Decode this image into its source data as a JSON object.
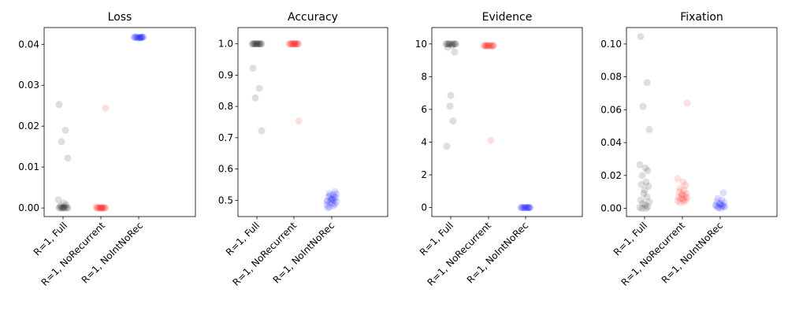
{
  "chart_data": [
    {
      "type": "scatter",
      "title": "Loss",
      "categories": [
        "R=1, Full",
        "R=1, NoRecurrent",
        "R=1, NoIntNoRec"
      ],
      "ylim": [
        -0.0021,
        0.0441
      ],
      "yticks": [
        0.0,
        0.01,
        0.02,
        0.03,
        0.04
      ],
      "ytick_labels": [
        "0.00",
        "0.01",
        "0.02",
        "0.03",
        "0.04"
      ],
      "series": [
        {
          "color": "#000000",
          "values": [
            0.0253,
            0.019,
            0.0162,
            0.0122,
            0.002,
            0.0012,
            0.0008,
            0.0005,
            0.0003,
            0.0002,
            0.0001,
            0.0001,
            0.0,
            0.0,
            0.0,
            0.0,
            0.0,
            0.0
          ]
        },
        {
          "color": "#ff0000",
          "values": [
            0.0244,
            0.0003,
            0.0002,
            0.0001,
            0.0001,
            0.0,
            0.0,
            0.0,
            0.0,
            0.0,
            0.0,
            0.0,
            0.0,
            0.0,
            0.0
          ]
        },
        {
          "color": "#0000ff",
          "values": [
            0.0418,
            0.0418,
            0.0417,
            0.0417,
            0.0417,
            0.0416,
            0.0416,
            0.0416,
            0.0417,
            0.0418,
            0.0417,
            0.0416,
            0.0417,
            0.0418,
            0.0417
          ]
        }
      ]
    },
    {
      "type": "scatter",
      "title": "Accuracy",
      "categories": [
        "R=1, Full",
        "R=1, NoRecurrent",
        "R=1, NoIntNoRec"
      ],
      "ylim": [
        0.448,
        1.052
      ],
      "yticks": [
        0.5,
        0.6,
        0.7,
        0.8,
        0.9,
        1.0
      ],
      "ytick_labels": [
        "0.5",
        "0.6",
        "0.7",
        "0.8",
        "0.9",
        "1.0"
      ],
      "series": [
        {
          "color": "#000000",
          "values": [
            0.922,
            0.858,
            0.827,
            0.722,
            1.0,
            1.0,
            1.0,
            1.0,
            1.0,
            1.0,
            1.0,
            1.0,
            1.0,
            1.0,
            1.0,
            1.0,
            1.0
          ]
        },
        {
          "color": "#ff0000",
          "values": [
            0.753,
            1.0,
            1.0,
            1.0,
            1.0,
            1.0,
            1.0,
            1.0,
            1.0,
            1.0,
            1.0,
            1.0,
            1.0,
            1.0,
            1.0
          ]
        },
        {
          "color": "#0000ff",
          "values": [
            0.528,
            0.522,
            0.518,
            0.512,
            0.508,
            0.505,
            0.502,
            0.5,
            0.498,
            0.495,
            0.492,
            0.49,
            0.487,
            0.485,
            0.482,
            0.478,
            0.476,
            0.51,
            0.515,
            0.52,
            0.497,
            0.503
          ]
        }
      ]
    },
    {
      "type": "scatter",
      "title": "Evidence",
      "categories": [
        "R=1, Full",
        "R=1, NoRecurrent",
        "R=1, NoIntNoRec"
      ],
      "ylim": [
        -0.55,
        11.0
      ],
      "yticks": [
        0,
        2,
        4,
        6,
        8,
        10
      ],
      "ytick_labels": [
        "0",
        "2",
        "4",
        "6",
        "8",
        "10"
      ],
      "series": [
        {
          "color": "#000000",
          "values": [
            10.0,
            10.0,
            10.0,
            10.0,
            10.0,
            10.0,
            10.0,
            10.0,
            9.9,
            9.8,
            9.5,
            6.85,
            6.2,
            5.3,
            3.75,
            10.0,
            10.0
          ]
        },
        {
          "color": "#ff0000",
          "values": [
            9.9,
            9.9,
            9.9,
            9.85,
            9.9,
            9.9,
            9.9,
            9.9,
            9.9,
            9.9,
            4.1,
            9.9,
            9.9,
            9.85
          ]
        },
        {
          "color": "#0000ff",
          "values": [
            0.0,
            0.0,
            0.0,
            0.0,
            0.0,
            0.0,
            0.0,
            0.0,
            0.0,
            0.0,
            0.0,
            0.0,
            0.0,
            0.0
          ]
        }
      ]
    },
    {
      "type": "scatter",
      "title": "Fixation",
      "categories": [
        "R=1, Full",
        "R=1, NoRecurrent",
        "R=1, NoIntNoRec"
      ],
      "ylim": [
        -0.005,
        0.11
      ],
      "yticks": [
        0.0,
        0.02,
        0.04,
        0.06,
        0.08,
        0.1
      ],
      "ytick_labels": [
        "0.00",
        "0.02",
        "0.04",
        "0.06",
        "0.08",
        "0.10"
      ],
      "series": [
        {
          "color": "#000000",
          "values": [
            0.1045,
            0.0765,
            0.062,
            0.048,
            0.0265,
            0.0245,
            0.023,
            0.02,
            0.016,
            0.0145,
            0.0135,
            0.011,
            0.009,
            0.007,
            0.005,
            0.004,
            0.003,
            0.002,
            0.001,
            0.0005,
            0.0,
            0.0
          ]
        },
        {
          "color": "#ff0000",
          "values": [
            0.064,
            0.018,
            0.016,
            0.014,
            0.012,
            0.011,
            0.01,
            0.009,
            0.0085,
            0.008,
            0.0075,
            0.007,
            0.0065,
            0.006,
            0.0055,
            0.005,
            0.0045,
            0.004,
            0.0035
          ]
        },
        {
          "color": "#0000ff",
          "values": [
            0.0095,
            0.006,
            0.005,
            0.004,
            0.0035,
            0.003,
            0.0025,
            0.002,
            0.0015,
            0.001,
            0.0005,
            0.0,
            0.001,
            0.002,
            0.0015,
            0.0005
          ]
        }
      ]
    }
  ]
}
